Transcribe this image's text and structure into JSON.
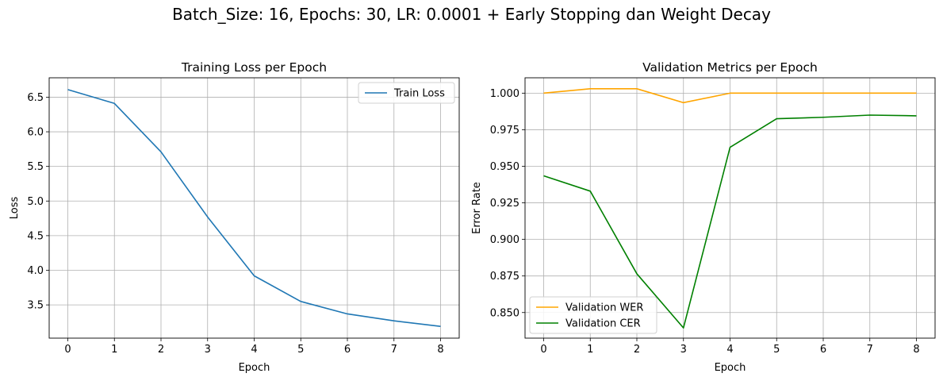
{
  "figure_title": "Batch_Size: 16, Epochs: 30, LR: 0.0001 + Early Stopping dan Weight Decay",
  "chart_data": [
    {
      "type": "line",
      "title": "Training Loss per Epoch",
      "xlabel": "Epoch",
      "ylabel": "Loss",
      "x": [
        0,
        1,
        2,
        3,
        4,
        5,
        6,
        7,
        8
      ],
      "series": [
        {
          "name": "Train Loss",
          "color": "#1f77b4",
          "values": [
            6.61,
            6.41,
            5.71,
            4.77,
            3.92,
            3.55,
            3.37,
            3.27,
            3.19
          ]
        }
      ],
      "xticks": [
        "0",
        "1",
        "2",
        "3",
        "4",
        "5",
        "6",
        "7",
        "8"
      ],
      "yticks": [
        "3.5",
        "4.0",
        "4.5",
        "5.0",
        "5.5",
        "6.0",
        "6.5"
      ],
      "ylim": [
        3.02,
        6.78
      ],
      "xlim": [
        -0.4,
        8.4
      ],
      "grid": true,
      "legend": "top-right"
    },
    {
      "type": "line",
      "title": "Validation Metrics per Epoch",
      "xlabel": "Epoch",
      "ylabel": "Error Rate",
      "x": [
        0,
        1,
        2,
        3,
        4,
        5,
        6,
        7,
        8
      ],
      "series": [
        {
          "name": "Validation WER",
          "color": "#ffa500",
          "values": [
            1.0,
            1.003,
            1.003,
            0.9935,
            1.0,
            1.0,
            1.0,
            1.0,
            1.0
          ]
        },
        {
          "name": "Validation CER",
          "color": "#008000",
          "values": [
            0.9435,
            0.933,
            0.8765,
            0.8395,
            0.963,
            0.9825,
            0.9835,
            0.985,
            0.9845
          ]
        }
      ],
      "xticks": [
        "0",
        "1",
        "2",
        "3",
        "4",
        "5",
        "6",
        "7",
        "8"
      ],
      "yticks": [
        "0.850",
        "0.875",
        "0.900",
        "0.925",
        "0.950",
        "0.975",
        "1.000"
      ],
      "ylim": [
        0.8325,
        1.0105
      ],
      "xlim": [
        -0.4,
        8.4
      ],
      "grid": true,
      "legend": "bottom-left"
    }
  ]
}
